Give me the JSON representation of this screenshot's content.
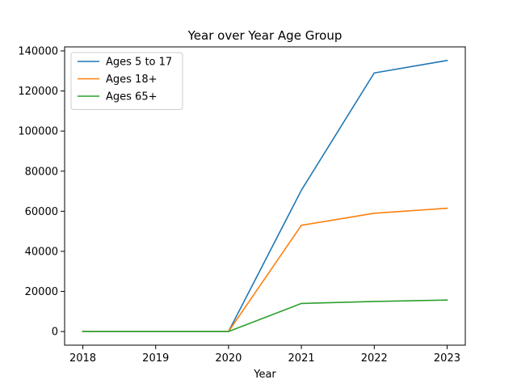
{
  "chart_data": {
    "type": "line",
    "title": "Year over Year Age Group",
    "xlabel": "Year",
    "ylabel": "",
    "x": [
      2018,
      2019,
      2020,
      2021,
      2022,
      2023
    ],
    "x_tick_labels": [
      "2018",
      "2019",
      "2020",
      "2021",
      "2022",
      "2023"
    ],
    "xlim": [
      2017.75,
      2023.25
    ],
    "ylim": [
      -6800,
      142000
    ],
    "y_ticks": [
      0,
      20000,
      40000,
      60000,
      80000,
      100000,
      120000,
      140000
    ],
    "y_tick_labels": [
      "0",
      "20000",
      "40000",
      "60000",
      "80000",
      "100000",
      "120000",
      "140000"
    ],
    "grid": false,
    "legend_position": "top-left",
    "series": [
      {
        "name": "Ages 5 to 17",
        "color": "#1f77b4",
        "values": [
          0,
          0,
          0,
          70500,
          129000,
          135200
        ]
      },
      {
        "name": "Ages 18+",
        "color": "#ff7f0e",
        "values": [
          0,
          0,
          0,
          53000,
          59000,
          61500
        ]
      },
      {
        "name": "Ages 65+",
        "color": "#2ca02c",
        "values": [
          0,
          0,
          0,
          14000,
          15000,
          15700
        ]
      }
    ]
  }
}
